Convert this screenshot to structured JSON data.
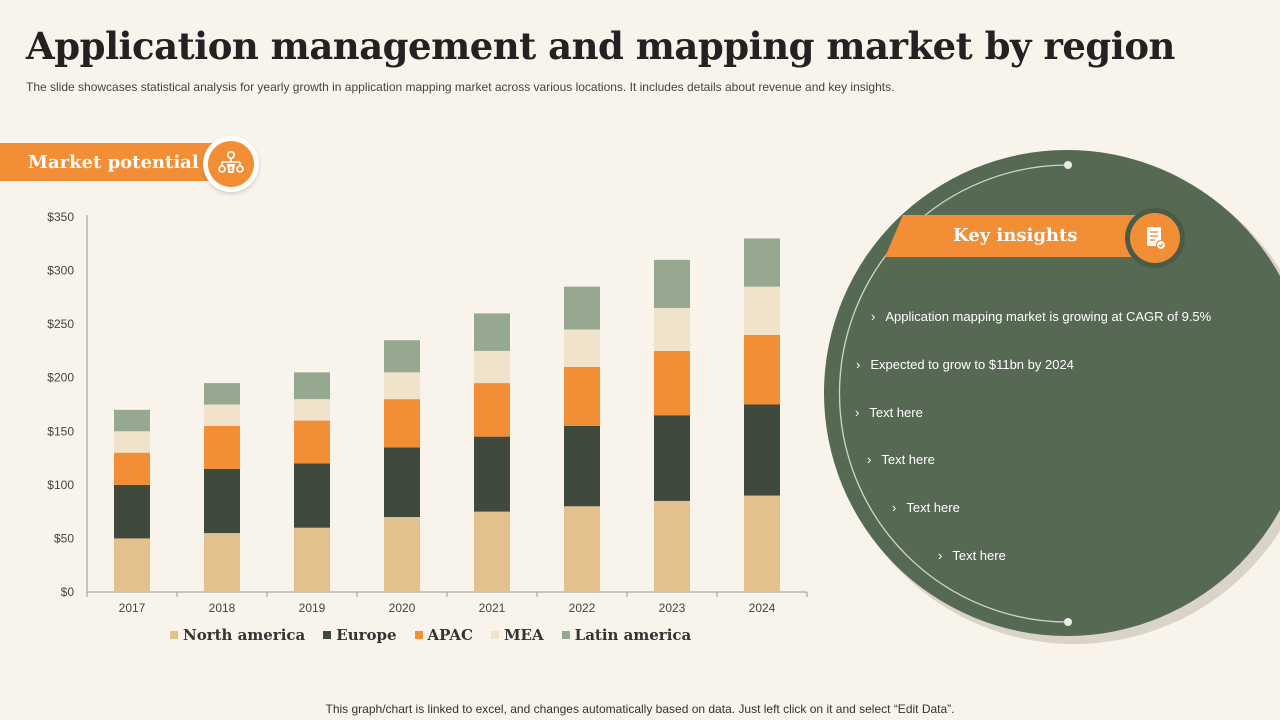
{
  "header": {
    "title": "Application management and mapping market by region",
    "subtitle": "The slide showcases statistical analysis for yearly growth in application mapping market across various locations. It includes details about revenue and key insights."
  },
  "market_banner": {
    "label": "Market potential",
    "icon": "hierarchy-dollar-icon"
  },
  "insights": {
    "title": "Key insights",
    "icon": "document-checklist-icon",
    "items": [
      "Application mapping market is growing at CAGR of 9.5%",
      "Expected to grow to $11bn by 2024",
      "Text here",
      "Text here",
      "Text here",
      "Text here"
    ]
  },
  "footer": {
    "note": "This graph/chart is linked to excel, and changes automatically based on data. Just left click on it and select “Edit Data”."
  },
  "colors": {
    "background": "#f8f3eb",
    "accent": "#f28e35",
    "circle": "#566a53"
  },
  "chart_data": {
    "type": "bar",
    "stacked": true,
    "categories": [
      "2017",
      "2018",
      "2019",
      "2020",
      "2021",
      "2022",
      "2023",
      "2024"
    ],
    "series": [
      {
        "name": "North america",
        "color": "#e3c18d",
        "values": [
          50,
          55,
          60,
          70,
          75,
          80,
          85,
          90
        ]
      },
      {
        "name": "Europe",
        "color": "#3f4a3c",
        "values": [
          50,
          60,
          60,
          65,
          70,
          75,
          80,
          85
        ]
      },
      {
        "name": "APAC",
        "color": "#f28e35",
        "values": [
          30,
          40,
          40,
          45,
          50,
          55,
          60,
          65
        ]
      },
      {
        "name": "MEA",
        "color": "#f1e2cb",
        "values": [
          20,
          20,
          20,
          25,
          30,
          35,
          40,
          45
        ]
      },
      {
        "name": "Latin america",
        "color": "#97a891",
        "values": [
          20,
          20,
          25,
          30,
          35,
          40,
          45,
          45
        ]
      }
    ],
    "yticks": [
      "$0",
      "$50",
      "$100",
      "$150",
      "$200",
      "$250",
      "$300",
      "$350"
    ],
    "ylim": [
      0,
      350
    ],
    "grid": false,
    "legend": "bottom"
  }
}
